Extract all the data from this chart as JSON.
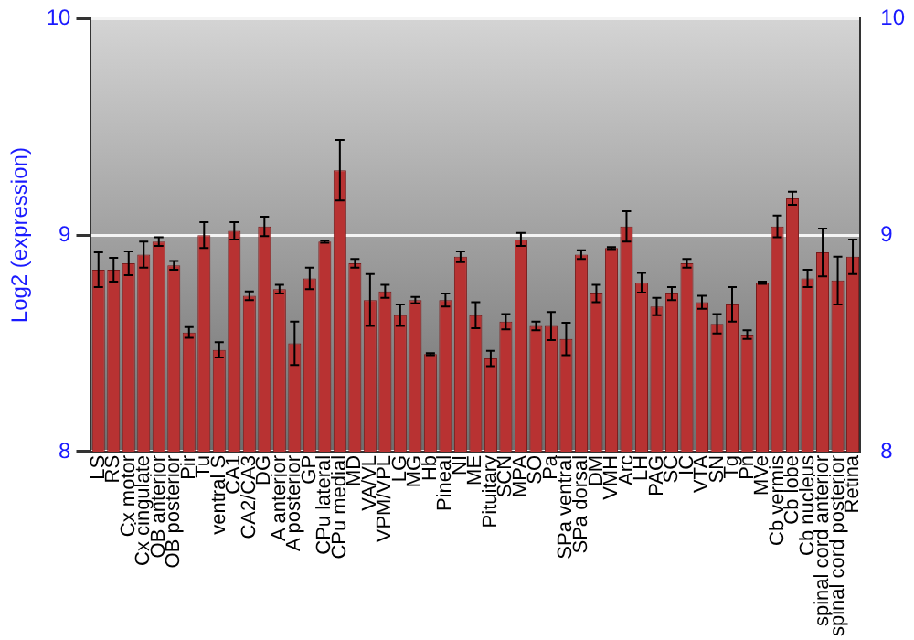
{
  "chart_data": {
    "type": "bar",
    "ylabel": "Log2 (expression)",
    "categories": [
      "LS",
      "RS",
      "Cx motor",
      "Cx cingulate",
      "OB anterior",
      "OB posterior",
      "Pir",
      "Tu",
      "ventral S",
      "CA1",
      "CA2/CA3",
      "DG",
      "A anterior",
      "A posterior",
      "GP",
      "CPu lateral",
      "CPu medial",
      "MD",
      "VA/VL",
      "VPM/VPL",
      "LG",
      "MG",
      "Hb",
      "Pineal",
      "NI",
      "ME",
      "Pituitary",
      "SCN",
      "MPA",
      "SO",
      "Pa",
      "SPa ventral",
      "SPa dorsal",
      "DM",
      "VMH",
      "Arc",
      "LH",
      "PAG",
      "SC",
      "IC",
      "VTA",
      "SN",
      "Tg",
      "Pn",
      "MVe",
      "Cb vermis",
      "Cb lobe",
      "Cb nucleus",
      "spinal cord anterior",
      "spinal cord posterior",
      "Retina"
    ],
    "values": [
      8.84,
      8.84,
      8.87,
      8.91,
      8.97,
      8.86,
      8.55,
      9.0,
      8.47,
      9.02,
      8.72,
      9.04,
      8.75,
      8.5,
      8.8,
      8.97,
      9.3,
      8.87,
      8.7,
      8.74,
      8.63,
      8.7,
      8.45,
      8.7,
      8.9,
      8.63,
      8.43,
      8.6,
      8.98,
      8.58,
      8.58,
      8.52,
      8.91,
      8.73,
      8.94,
      9.04,
      8.78,
      8.67,
      8.73,
      8.87,
      8.69,
      8.59,
      8.68,
      8.54,
      8.78,
      9.04,
      9.17,
      8.8,
      8.92,
      8.79,
      8.9
    ],
    "errors": [
      0.08,
      0.055,
      0.055,
      0.06,
      0.02,
      0.02,
      0.025,
      0.06,
      0.035,
      0.04,
      0.02,
      0.045,
      0.02,
      0.1,
      0.05,
      0.005,
      0.14,
      0.02,
      0.12,
      0.03,
      0.05,
      0.015,
      0.005,
      0.03,
      0.025,
      0.06,
      0.035,
      0.035,
      0.03,
      0.02,
      0.065,
      0.075,
      0.02,
      0.04,
      0.005,
      0.07,
      0.045,
      0.04,
      0.03,
      0.02,
      0.03,
      0.045,
      0.08,
      0.02,
      0.005,
      0.05,
      0.03,
      0.04,
      0.11,
      0.11,
      0.08
    ],
    "color": "#b83232",
    "ylim": [
      8,
      10
    ],
    "yticks": [
      8,
      9,
      10
    ],
    "y2lim": [
      8,
      10
    ],
    "y2ticks": [
      8,
      9,
      10
    ],
    "grid": "y",
    "legend": false
  }
}
